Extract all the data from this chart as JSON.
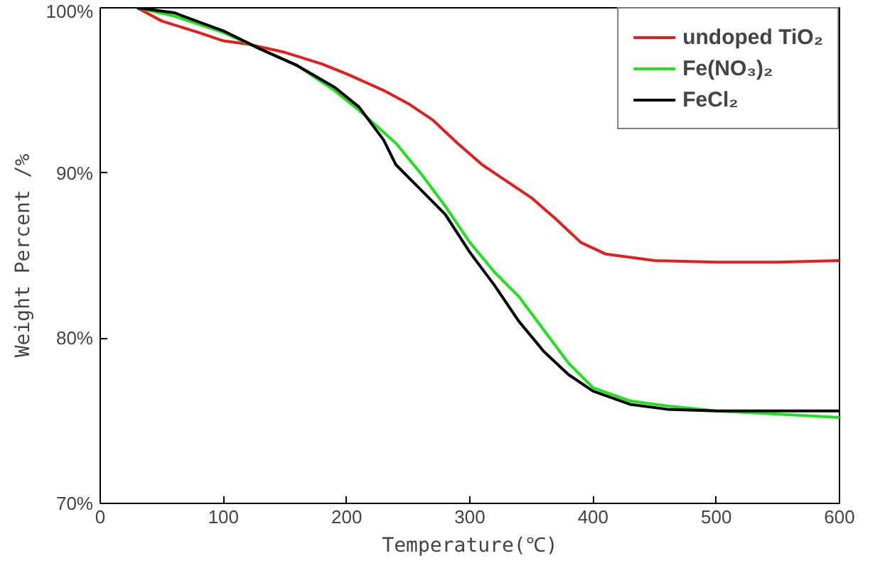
{
  "chart_data": {
    "type": "line",
    "xlabel": "Temperature(℃)",
    "ylabel": "Weight Percent /%",
    "xlim": [
      0,
      600
    ],
    "xticks": [
      0,
      100,
      200,
      300,
      400,
      500,
      600
    ],
    "ylim": [
      70,
      100
    ],
    "yticks": [
      {
        "value": 70,
        "label": "70%"
      },
      {
        "value": 80,
        "label": "80%"
      },
      {
        "value": 90,
        "label": "90%"
      },
      {
        "value": 100,
        "label": "100%"
      }
    ],
    "grid": false,
    "legend": "top right",
    "series": [
      {
        "name": "undoped TiO₂",
        "color": "#e02020",
        "x": [
          30,
          50,
          80,
          100,
          120,
          150,
          180,
          200,
          230,
          250,
          270,
          290,
          310,
          330,
          350,
          370,
          390,
          410,
          450,
          500,
          550,
          600
        ],
        "values": [
          100,
          99.2,
          98.5,
          98.0,
          97.8,
          97.3,
          96.6,
          96.0,
          95.0,
          94.2,
          93.2,
          91.8,
          90.5,
          89.5,
          88.5,
          87.2,
          85.8,
          85.1,
          84.7,
          84.6,
          84.6,
          84.7
        ]
      },
      {
        "name": "Fe(NO₃)₂",
        "color": "#20e020",
        "x": [
          30,
          60,
          100,
          130,
          160,
          190,
          210,
          240,
          260,
          280,
          300,
          320,
          340,
          360,
          380,
          400,
          430,
          460,
          500,
          550,
          600
        ],
        "values": [
          100,
          99.5,
          98.5,
          97.5,
          96.5,
          95.0,
          93.8,
          91.8,
          90.0,
          88.0,
          85.8,
          84.0,
          82.5,
          80.5,
          78.5,
          77.0,
          76.2,
          75.9,
          75.6,
          75.4,
          75.2
        ]
      },
      {
        "name": "FeCl₂",
        "color": "#000000",
        "x": [
          30,
          60,
          100,
          130,
          160,
          190,
          210,
          230,
          240,
          260,
          280,
          300,
          320,
          340,
          360,
          380,
          400,
          430,
          460,
          500,
          550,
          600
        ],
        "values": [
          100,
          99.7,
          98.6,
          97.5,
          96.5,
          95.2,
          94.0,
          92.0,
          90.5,
          89.0,
          87.5,
          85.2,
          83.2,
          81.0,
          79.2,
          77.8,
          76.8,
          76.0,
          75.7,
          75.6,
          75.6,
          75.6
        ]
      }
    ]
  }
}
